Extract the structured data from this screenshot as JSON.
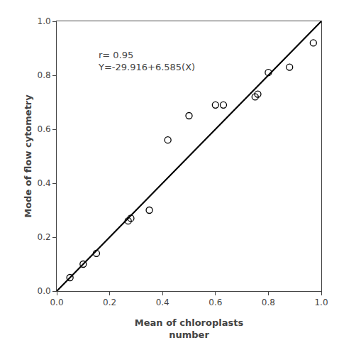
{
  "chart_data": {
    "type": "scatter",
    "xlabel": "Mean of chloroplasts\nnumber",
    "ylabel": "Mode of flow cytometry",
    "series": [
      {
        "type": "scatter",
        "x": [
          0.05,
          0.1,
          0.15,
          0.27,
          0.28,
          0.35,
          0.42,
          0.5,
          0.6,
          0.63,
          0.75,
          0.76,
          0.8,
          0.88,
          0.97
        ],
        "values": [
          0.05,
          0.1,
          0.14,
          0.26,
          0.27,
          0.3,
          0.56,
          0.65,
          0.69,
          0.69,
          0.72,
          0.73,
          0.81,
          0.83,
          0.92
        ],
        "color": "black",
        "marker": "circle-open"
      },
      {
        "type": "line",
        "x": [
          0.0,
          1.0
        ],
        "values": [
          0.0,
          1.0
        ],
        "color": "black",
        "line_style": "solid"
      }
    ],
    "annotations": [
      {
        "text": "r= 0.95\nY=-29.916+6.585(X)",
        "x": 0.15,
        "y": 0.9
      }
    ],
    "xlim": [
      0.0,
      1.0
    ],
    "ylim": [
      0.0,
      1.0
    ],
    "xticks": [
      {
        "value": 0.0,
        "label": "0.0"
      },
      0.2,
      0.4,
      0.6,
      0.8,
      {
        "value": 1.0,
        "label": "1.0"
      }
    ],
    "yticks": [
      {
        "value": 0.0,
        "label": "0.0"
      },
      0.2,
      0.4,
      0.6,
      0.8,
      {
        "value": 1.0,
        "label": "1.0"
      }
    ],
    "grid": false
  }
}
